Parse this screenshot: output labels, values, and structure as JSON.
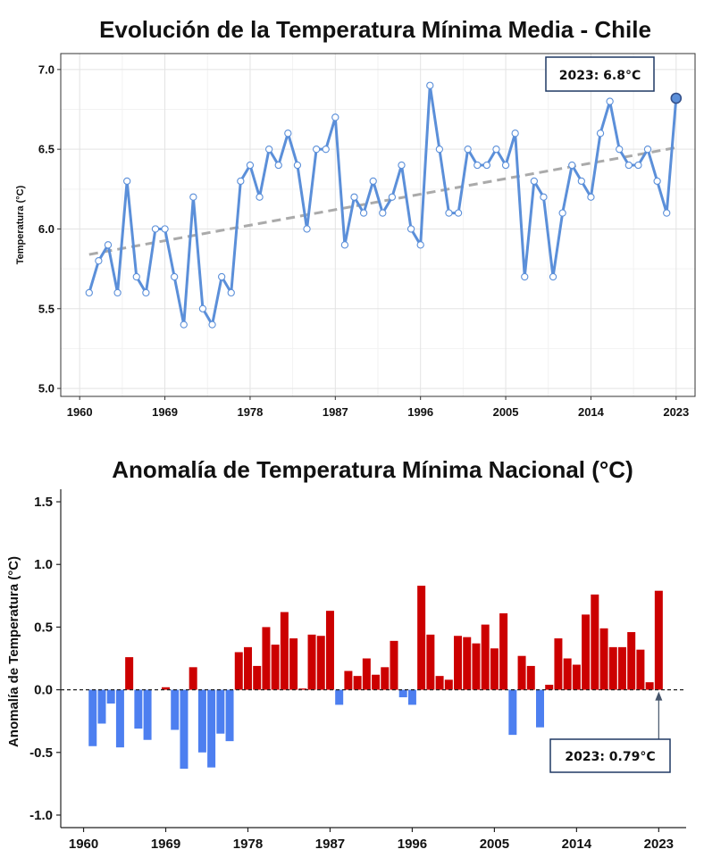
{
  "chart_data": [
    {
      "type": "line",
      "title": "Evolución de la Temperatura Mínima Media - Chile",
      "ylabel": "Temperatura (°C)",
      "xlabel": "",
      "xlim": [
        1958,
        2025
      ],
      "ylim": [
        4.95,
        7.1
      ],
      "x_ticks": [
        1960,
        1969,
        1978,
        1987,
        1996,
        2005,
        2014,
        2023
      ],
      "y_ticks": [
        5.0,
        5.5,
        6.0,
        6.5,
        7.0
      ],
      "y_tick_labels": [
        "5.0",
        "5.5",
        "6.0",
        "6.5",
        "7.0"
      ],
      "grid": true,
      "line_color": "#5b8fd9",
      "trend_color": "#aaaaaa",
      "series": [
        {
          "x": [
            1961,
            1962,
            1963,
            1964,
            1965,
            1966,
            1967,
            1968,
            1969,
            1970,
            1971,
            1972,
            1973,
            1974,
            1975,
            1976,
            1977,
            1978,
            1979,
            1980,
            1981,
            1982,
            1983,
            1984,
            1985,
            1986,
            1987,
            1988,
            1989,
            1990,
            1991,
            1992,
            1993,
            1994,
            1995,
            1996,
            1997,
            1998,
            1999,
            2000,
            2001,
            2002,
            2003,
            2004,
            2005,
            2006,
            2007,
            2008,
            2009,
            2010,
            2011,
            2012,
            2013,
            2014,
            2015,
            2016,
            2017,
            2018,
            2019,
            2020,
            2021,
            2022,
            2023
          ],
          "values": [
            5.6,
            5.8,
            5.9,
            5.6,
            6.3,
            5.7,
            5.6,
            6.0,
            6.0,
            5.7,
            5.4,
            6.2,
            5.5,
            5.4,
            5.7,
            5.6,
            6.3,
            6.4,
            6.2,
            6.5,
            6.4,
            6.6,
            6.4,
            6.0,
            6.5,
            6.5,
            6.7,
            5.9,
            6.2,
            6.1,
            6.3,
            6.1,
            6.2,
            6.4,
            6.0,
            5.9,
            6.9,
            6.5,
            6.1,
            6.1,
            6.5,
            6.4,
            6.4,
            6.5,
            6.4,
            6.6,
            5.7,
            6.3,
            6.2,
            5.7,
            6.1,
            6.4,
            6.3,
            6.2,
            6.6,
            6.8,
            6.5,
            6.4,
            6.4,
            6.5,
            6.3,
            6.1,
            6.82
          ]
        }
      ],
      "trend": {
        "x": [
          1961,
          2023
        ],
        "values": [
          5.84,
          6.51
        ]
      },
      "annotation": {
        "text": "2023: 6.8°C",
        "x": 2023,
        "y": 6.82
      }
    },
    {
      "type": "bar",
      "title": "Anomalía de Temperatura Mínima Nacional (°C)",
      "ylabel": "Anomalía de Temperatura (°C)",
      "xlabel": "",
      "xlim": [
        1957.5,
        2026
      ],
      "ylim": [
        -1.1,
        1.6
      ],
      "x_ticks": [
        1960,
        1969,
        1978,
        1987,
        1996,
        2005,
        2014,
        2023
      ],
      "y_ticks": [
        -1.0,
        -0.5,
        0.0,
        0.5,
        1.0,
        1.5
      ],
      "y_tick_labels": [
        "-1.0",
        "-0.5",
        "0.0",
        "0.5",
        "1.0",
        "1.5"
      ],
      "grid": false,
      "positive_color": "#cc0000",
      "negative_color": "#4d7ff0",
      "x": [
        1961,
        1962,
        1963,
        1964,
        1965,
        1966,
        1967,
        1968,
        1969,
        1970,
        1971,
        1972,
        1973,
        1974,
        1975,
        1976,
        1977,
        1978,
        1979,
        1980,
        1981,
        1982,
        1983,
        1984,
        1985,
        1986,
        1987,
        1988,
        1989,
        1990,
        1991,
        1992,
        1993,
        1994,
        1995,
        1996,
        1997,
        1998,
        1999,
        2000,
        2001,
        2002,
        2003,
        2004,
        2005,
        2006,
        2007,
        2008,
        2009,
        2010,
        2011,
        2012,
        2013,
        2014,
        2015,
        2016,
        2017,
        2018,
        2019,
        2020,
        2021,
        2022,
        2023
      ],
      "values": [
        -0.45,
        -0.27,
        -0.11,
        -0.46,
        0.26,
        -0.31,
        -0.4,
        0.0,
        0.02,
        -0.32,
        -0.63,
        0.18,
        -0.5,
        -0.62,
        -0.35,
        -0.41,
        0.3,
        0.34,
        0.19,
        0.5,
        0.36,
        0.62,
        0.41,
        0.01,
        0.44,
        0.43,
        0.63,
        -0.12,
        0.15,
        0.11,
        0.25,
        0.12,
        0.18,
        0.39,
        -0.06,
        -0.12,
        0.83,
        0.44,
        0.11,
        0.08,
        0.43,
        0.42,
        0.37,
        0.52,
        0.33,
        0.61,
        -0.36,
        0.27,
        0.19,
        -0.3,
        0.04,
        0.41,
        0.25,
        0.2,
        0.6,
        0.76,
        0.49,
        0.34,
        0.34,
        0.46,
        0.32,
        0.06,
        0.79
      ],
      "annotation": {
        "text": "2023: 0.79°C",
        "x": 2023,
        "y": 0.79
      }
    }
  ]
}
